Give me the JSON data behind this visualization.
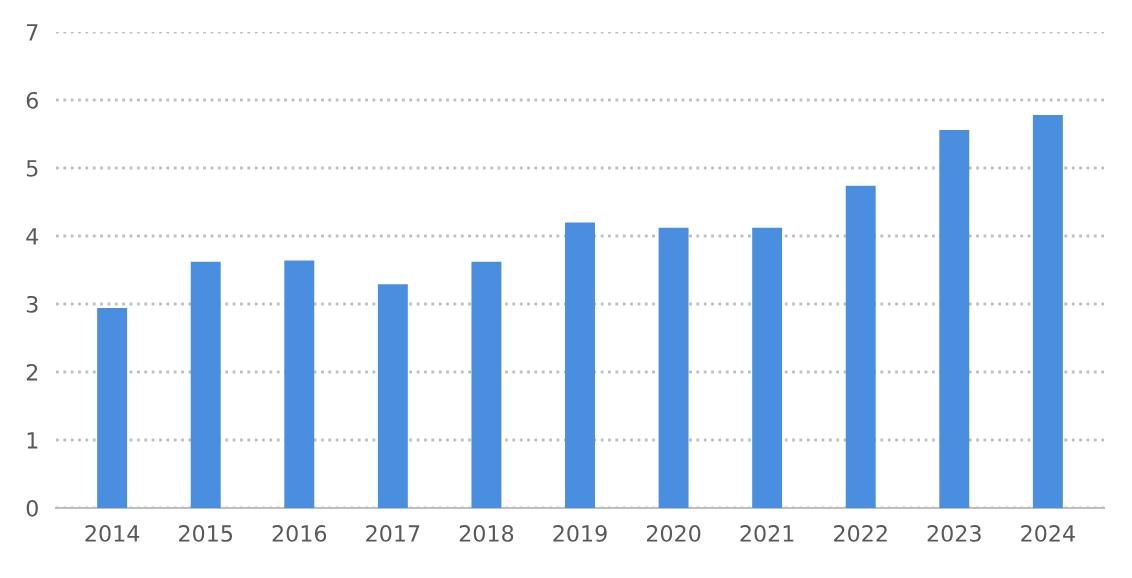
{
  "chart_data": {
    "type": "bar",
    "categories": [
      "2014",
      "2015",
      "2016",
      "2017",
      "2018",
      "2019",
      "2020",
      "2021",
      "2022",
      "2023",
      "2024"
    ],
    "values": [
      2.94,
      3.62,
      3.64,
      3.29,
      3.62,
      4.2,
      4.12,
      4.12,
      4.74,
      5.56,
      5.78
    ],
    "color": "#4a8ee0",
    "ylim": [
      0,
      7
    ],
    "yticks": [
      0,
      1,
      2,
      3,
      4,
      5,
      6,
      7
    ],
    "grid": "y"
  }
}
